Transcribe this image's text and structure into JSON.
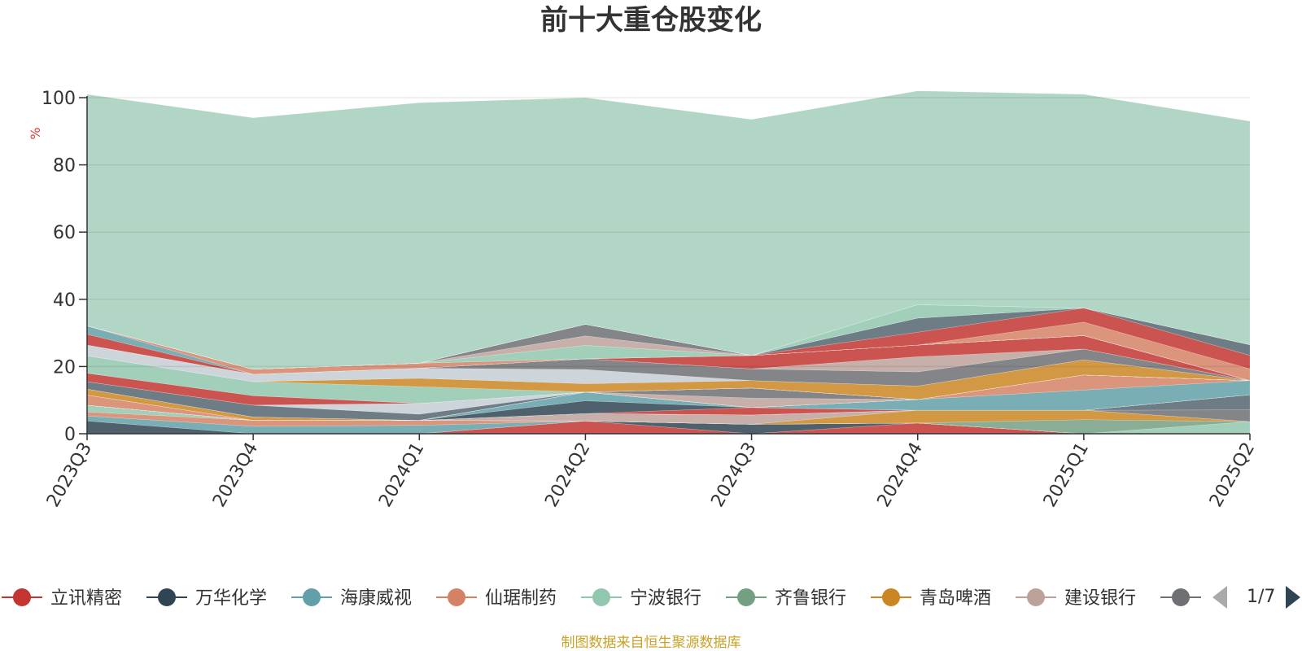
{
  "title": "前十大重仓股变化",
  "source_note": "制图数据来自恒生聚源数据库",
  "legend_page": "1/7",
  "chart_data": {
    "type": "area",
    "stacked": true,
    "unit": "%",
    "ylim": [
      0,
      100
    ],
    "yticks": [
      0,
      20,
      40,
      60,
      80,
      100
    ],
    "grid": true,
    "legend_placement": "bottom",
    "categories": [
      "2023Q3",
      "2023Q4",
      "2024Q1",
      "2024Q2",
      "2024Q3",
      "2024Q4",
      "2025Q1",
      "2025Q2"
    ],
    "series": [
      {
        "name": "立讯精密",
        "color": "#c23531",
        "values": [
          0,
          0,
          0,
          3.8,
          0,
          3.2,
          0,
          0
        ]
      },
      {
        "name": "万华化学",
        "color": "#2f4554",
        "values": [
          3.8,
          0,
          0,
          0,
          2.8,
          0,
          0,
          0
        ]
      },
      {
        "name": "海康威视",
        "color": "#61a0a8",
        "values": [
          1.5,
          2.2,
          2.5,
          0,
          0,
          0,
          0,
          0
        ]
      },
      {
        "name": "仙琚制药",
        "color": "#d48265",
        "values": [
          1.2,
          1.8,
          1.5,
          0,
          0,
          0,
          0,
          0
        ]
      },
      {
        "name": "宁波银行",
        "color": "#91c7ae",
        "values": [
          2.0,
          0,
          0,
          0,
          0,
          0,
          0,
          3.6
        ]
      },
      {
        "name": "齐鲁银行",
        "color": "#749f83",
        "values": [
          0,
          0,
          0,
          0,
          0,
          0,
          4.2,
          0
        ]
      },
      {
        "name": "青岛啤酒",
        "color": "#ca8622",
        "values": [
          0,
          0,
          0,
          0,
          0,
          3.8,
          2.8,
          0
        ]
      },
      {
        "name": "建设银行",
        "color": "#bda29a",
        "values": [
          0,
          0,
          0,
          2.2,
          2.8,
          0,
          0,
          0
        ]
      },
      {
        "name": "",
        "color": "#6e7074",
        "values": [
          0,
          0,
          0,
          0,
          0,
          0,
          0,
          3.5
        ]
      },
      {
        "name": "",
        "color": "#546570",
        "values": [
          0,
          0,
          0,
          0,
          0,
          0,
          0,
          4.5
        ]
      },
      {
        "name": "",
        "color": "#c4ccd3",
        "values": [
          0,
          0,
          0,
          0,
          0,
          0,
          0,
          0
        ]
      },
      {
        "name": "",
        "color": "#c23531",
        "values": [
          0,
          0,
          0,
          0,
          2.2,
          0,
          0,
          0
        ]
      },
      {
        "name": "",
        "color": "#2f4554",
        "values": [
          0,
          0,
          0,
          3.8,
          0,
          0,
          0,
          0
        ]
      },
      {
        "name": "",
        "color": "#61a0a8",
        "values": [
          0,
          0,
          0,
          2.6,
          0,
          3.2,
          6.0,
          4.2
        ]
      },
      {
        "name": "",
        "color": "#d48265",
        "values": [
          3.0,
          0,
          0,
          0,
          0,
          0,
          4.5,
          0
        ]
      },
      {
        "name": "",
        "color": "#91c7ae",
        "values": [
          0,
          0,
          0,
          0,
          0,
          0,
          0,
          0
        ]
      },
      {
        "name": "",
        "color": "#749f83",
        "values": [
          0,
          0,
          0,
          0,
          0,
          0,
          0,
          0
        ]
      },
      {
        "name": "",
        "color": "#ca8622",
        "values": [
          1.8,
          1.0,
          0,
          0,
          0,
          0,
          0,
          0
        ]
      },
      {
        "name": "",
        "color": "#bda29a",
        "values": [
          0,
          0,
          0,
          0,
          2.8,
          0,
          0,
          0
        ]
      },
      {
        "name": "",
        "color": "#6e7074",
        "values": [
          0,
          0,
          0,
          0,
          3.0,
          0,
          0,
          0
        ]
      },
      {
        "name": "",
        "color": "#546570",
        "values": [
          2.2,
          3.5,
          1.8,
          0,
          0,
          0,
          0,
          0
        ]
      },
      {
        "name": "",
        "color": "#c4ccd3",
        "values": [
          0,
          0,
          3.2,
          0,
          0,
          0,
          0,
          0
        ]
      },
      {
        "name": "",
        "color": "#c23531",
        "values": [
          2.5,
          2.8,
          0,
          0,
          0,
          0,
          0,
          0
        ]
      },
      {
        "name": "",
        "color": "#91c7ae",
        "values": [
          5.2,
          4.2,
          5.0,
          0,
          0,
          0,
          0,
          0
        ]
      },
      {
        "name": "",
        "color": "#ca8622",
        "values": [
          0,
          0,
          2.5,
          2.5,
          2.2,
          4.0,
          4.5,
          0
        ]
      },
      {
        "name": "",
        "color": "#c4ccd3",
        "values": [
          3.2,
          2.2,
          3.0,
          4.2,
          0,
          0,
          0,
          0
        ]
      },
      {
        "name": "",
        "color": "#6e7074",
        "values": [
          0,
          0,
          0,
          3.2,
          3.5,
          4.2,
          3.2,
          0
        ]
      },
      {
        "name": "",
        "color": "#bda29a",
        "values": [
          0,
          0,
          0,
          0,
          0,
          4.5,
          0,
          0
        ]
      },
      {
        "name": "",
        "color": "#c23531",
        "values": [
          3.2,
          0,
          0,
          0,
          4.0,
          3.5,
          4.0,
          0
        ]
      },
      {
        "name": "",
        "color": "#61a0a8",
        "values": [
          2.5,
          0,
          0,
          0,
          0,
          0,
          0,
          0
        ]
      },
      {
        "name": "",
        "color": "#d48265",
        "values": [
          0,
          1.5,
          1.5,
          0,
          0,
          0,
          0,
          0
        ]
      },
      {
        "name": "",
        "color": "#91c7ae",
        "values": [
          0,
          0,
          0,
          4.0,
          0,
          0,
          0,
          0
        ]
      },
      {
        "name": "",
        "color": "#bda29a",
        "values": [
          0,
          0,
          0,
          2.8,
          0,
          0,
          0,
          0
        ]
      },
      {
        "name": "",
        "color": "#6e7074",
        "values": [
          0,
          0,
          0,
          3.5,
          0,
          0,
          0,
          0
        ]
      },
      {
        "name": "",
        "color": "#d48265",
        "values": [
          0,
          0,
          0,
          0,
          0,
          0,
          4.0,
          3.5
        ]
      },
      {
        "name": "",
        "color": "#c23531",
        "values": [
          0,
          0,
          0,
          0,
          0,
          3.8,
          4.2,
          4.0
        ]
      },
      {
        "name": "",
        "color": "#546570",
        "values": [
          0,
          0,
          0,
          0,
          0,
          4.2,
          0,
          3.2
        ]
      },
      {
        "name": "",
        "color": "#6e7074",
        "values": [
          0,
          0,
          0,
          0,
          0,
          0,
          0,
          0
        ]
      },
      {
        "name": "",
        "color": "#91c7ae",
        "values": [
          0,
          0,
          0,
          0,
          0,
          4.0,
          0,
          0
        ]
      },
      {
        "name": "",
        "color": "#c23531",
        "values": [
          0,
          0,
          0,
          0,
          0,
          0,
          0,
          0
        ]
      },
      {
        "name": "",
        "color": "#b2d6c5",
        "values": [
          68.9,
          74.8,
          77.5,
          67.4,
          70.2,
          63.6,
          63.6,
          66.5
        ]
      }
    ]
  }
}
